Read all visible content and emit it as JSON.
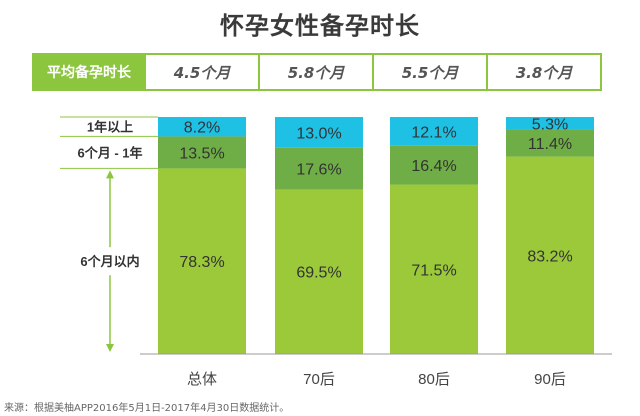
{
  "title": "怀孕女性备孕时长",
  "avg_row": {
    "label": "平均备孕时长",
    "values": [
      "4.5个月",
      "5.8个月",
      "5.5个月",
      "3.8个月"
    ]
  },
  "source": "来源：根据美柚APP2016年5月1日-2017年4月30日数据统计。",
  "colors": {
    "accent": "#8cc63f",
    "under6": "#9bc93a",
    "six_to_12": "#6fae46",
    "over12": "#1ec0e4"
  },
  "chart_data": {
    "type": "bar",
    "stacked": true,
    "percent_stacked": true,
    "categories": [
      "总体",
      "70后",
      "80后",
      "90后"
    ],
    "series": [
      {
        "name": "6个月以内",
        "values": [
          78.3,
          69.5,
          71.5,
          83.2
        ]
      },
      {
        "name": "6个月 - 1年",
        "values": [
          13.5,
          17.6,
          16.4,
          11.4
        ]
      },
      {
        "name": "1年以上",
        "values": [
          8.2,
          13.0,
          12.1,
          5.3
        ]
      }
    ],
    "value_labels": [
      [
        "78.3%",
        "69.5%",
        "71.5%",
        "83.2%"
      ],
      [
        "13.5%",
        "17.6%",
        "16.4%",
        "11.4%"
      ],
      [
        "8.2%",
        "13.0%",
        "12.1%",
        "5.3%"
      ]
    ],
    "ylim": [
      0,
      100
    ]
  }
}
